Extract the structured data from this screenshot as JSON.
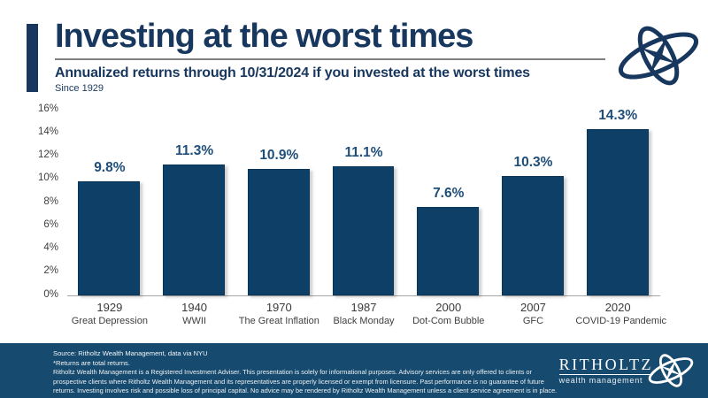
{
  "header": {
    "title": "Investing at the worst times",
    "subtitle": "Annualized returns through 10/31/2024 if you invested at the worst times",
    "since": "Since 1929"
  },
  "chart_data": {
    "type": "bar",
    "title": "Annualized returns through 10/31/2024 if you invested at the worst times",
    "subtitle": "Since 1929",
    "categories": [
      "1929",
      "1940",
      "1970",
      "1987",
      "2000",
      "2007",
      "2020"
    ],
    "category_sublabels": [
      "Great Depression",
      "WWII",
      "The Great Inflation",
      "Black Monday",
      "Dot-Com Bubble",
      "GFC",
      "COVID-19 Pandemic"
    ],
    "values": [
      9.8,
      11.3,
      10.9,
      11.1,
      7.6,
      10.3,
      14.3
    ],
    "value_labels": [
      "9.8%",
      "11.3%",
      "10.9%",
      "11.1%",
      "7.6%",
      "10.3%",
      "14.3%"
    ],
    "xlabel": "",
    "ylabel": "",
    "ylim": [
      0,
      16
    ],
    "ytick_step": 2,
    "ytick_labels": [
      "0%",
      "2%",
      "4%",
      "6%",
      "8%",
      "10%",
      "12%",
      "14%",
      "16%"
    ],
    "grid": false,
    "legend": false,
    "bar_color": "#0e3f66",
    "value_label_color": "#1f4e79"
  },
  "footer": {
    "source_line1": "Source: Ritholtz Wealth Management, data via NYU",
    "source_line2": "*Returns are total returns.",
    "disclaimer": "Ritholtz Wealth Management is a Registered Investment Adviser. This presentation is solely for informational purposes. Advisory services are only offered to clients or prospective clients where Ritholtz Wealth Management and its representatives are properly licensed or exempt from licensure. Past performance is no guarantee of future returns. Investing involves risk and possible loss of principal capital. No advice may be rendered by Ritholtz Wealth Management unless a client service agreement is in place.",
    "brand": {
      "name": "RITHOLTZ",
      "tagline": "wealth management"
    }
  },
  "colors": {
    "navy_title": "#17375e",
    "bar_fill": "#0e3f66",
    "value_label": "#1f4e79",
    "footer_bg": "#164a6e",
    "axis_text": "#3f3f3f",
    "axis_line": "#a6a6a6",
    "title_rule": "#7f7f7f"
  }
}
